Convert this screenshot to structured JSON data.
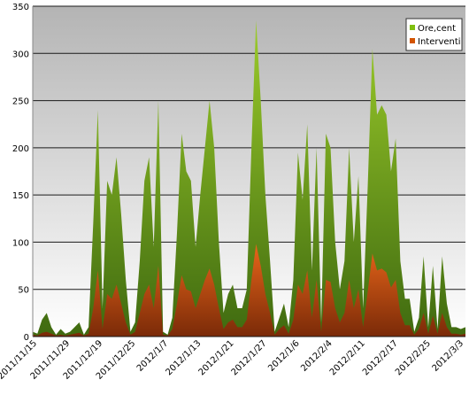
{
  "chart_data": {
    "type": "area",
    "title": "",
    "xlabel": "",
    "ylabel": "",
    "ylim": [
      0,
      350
    ],
    "y_ticks": [
      0,
      50,
      100,
      150,
      200,
      250,
      300,
      350
    ],
    "grid": true,
    "legend_position": "top-right",
    "x_tick_labels": [
      "2011/11/15",
      "2011/11/29",
      "2011/12/19",
      "2011/12/25",
      "2012/1/7",
      "2012/1/13",
      "2012/1/21",
      "2012/1/27",
      "2012/1/6",
      "2012/2/4",
      "2012/2/11",
      "2012/2/17",
      "2012/2/25",
      "2012/3/3"
    ],
    "series": [
      {
        "name": "Ore,cent",
        "color": "#7fbf10",
        "values": [
          5,
          3,
          18,
          25,
          10,
          2,
          8,
          3,
          5,
          10,
          15,
          2,
          10,
          120,
          240,
          30,
          165,
          150,
          190,
          130,
          60,
          5,
          15,
          80,
          165,
          190,
          95,
          250,
          5,
          2,
          20,
          110,
          215,
          175,
          165,
          95,
          150,
          200,
          250,
          200,
          100,
          25,
          45,
          55,
          30,
          30,
          50,
          200,
          335,
          250,
          150,
          80,
          5,
          20,
          35,
          10,
          60,
          195,
          145,
          225,
          70,
          200,
          15,
          215,
          200,
          100,
          50,
          80,
          200,
          100,
          170,
          30,
          160,
          305,
          235,
          245,
          235,
          175,
          210,
          80,
          40,
          40,
          5,
          20,
          85,
          10,
          75,
          8,
          85,
          35,
          10,
          10,
          8,
          10
        ]
      },
      {
        "name": "Interventi",
        "color": "#d35400",
        "values": [
          2,
          1,
          4,
          5,
          3,
          1,
          2,
          1,
          2,
          3,
          4,
          1,
          3,
          30,
          70,
          8,
          45,
          40,
          55,
          35,
          15,
          2,
          5,
          25,
          45,
          55,
          30,
          75,
          2,
          1,
          8,
          35,
          65,
          50,
          48,
          30,
          45,
          60,
          72,
          55,
          30,
          8,
          15,
          18,
          10,
          10,
          18,
          60,
          98,
          75,
          45,
          25,
          2,
          8,
          12,
          3,
          18,
          55,
          45,
          70,
          20,
          60,
          5,
          60,
          58,
          30,
          15,
          25,
          60,
          30,
          50,
          10,
          48,
          88,
          70,
          72,
          68,
          52,
          60,
          25,
          12,
          12,
          2,
          8,
          25,
          3,
          22,
          3,
          25,
          10,
          3,
          3,
          2,
          3
        ]
      }
    ]
  },
  "colors": {
    "plot_top": "#b4b4b4",
    "plot_bottom": "#ffffff",
    "grid": "#1a1a1a",
    "ore_top": "#9ccc2a",
    "ore_bottom": "#3f6a10",
    "interventi_top": "#e8661a",
    "interventi_bottom": "#7a2a08"
  }
}
